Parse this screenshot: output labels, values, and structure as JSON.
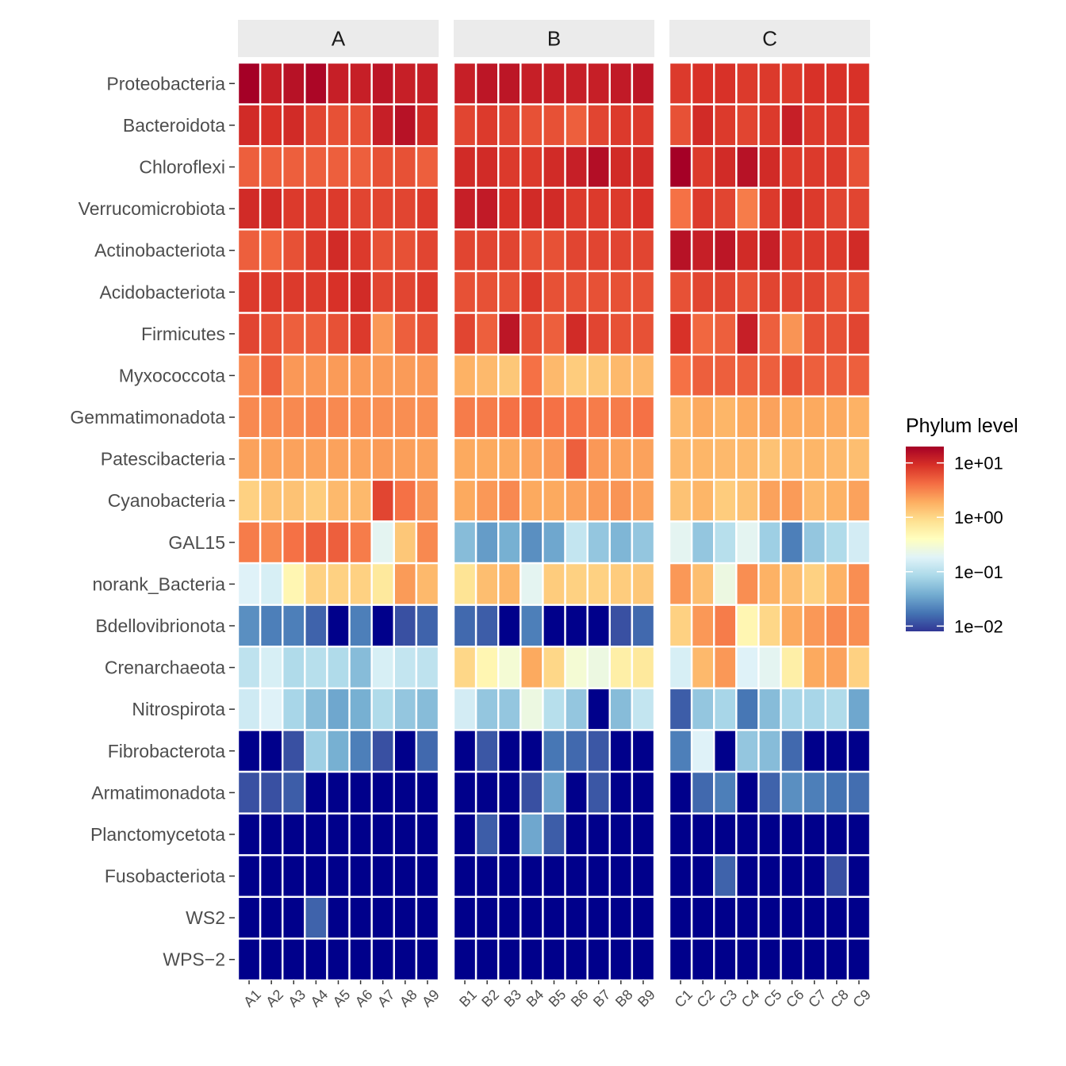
{
  "chart_data": {
    "type": "heatmap",
    "title": "",
    "xlabel": "",
    "ylabel": "",
    "scale": "log10",
    "palette": "RdYlBu (reversed)",
    "colors": [
      "#313695",
      "#4575b4",
      "#74add1",
      "#abd9e9",
      "#e0f3f8",
      "#ffffbf",
      "#fee090",
      "#fdae61",
      "#f46d43",
      "#d73027",
      "#a50026"
    ],
    "na_color": "#00008B",
    "legend": {
      "title": "Phylum level",
      "position": "right",
      "min": 0.008,
      "max": 20,
      "breaks": [
        10,
        1,
        0.1,
        0.01
      ],
      "break_labels": [
        "1e+01",
        "1e+00",
        "1e−01",
        "1e−02"
      ]
    },
    "rows": [
      "Proteobacteria",
      "Bacteroidota",
      "Chloroflexi",
      "Verrucomicrobiota",
      "Actinobacteriota",
      "Acidobacteriota",
      "Firmicutes",
      "Myxococcota",
      "Gemmatimonadota",
      "Patescibacteria",
      "Cyanobacteria",
      "GAL15",
      "norank_Bacteria",
      "Bdellovibrionota",
      "Crenarchaeota",
      "Nitrospirota",
      "Fibrobacterota",
      "Armatimonadota",
      "Planctomycetota",
      "Fusobacteriota",
      "WS2",
      "WPS−2"
    ],
    "facets": [
      {
        "name": "A",
        "samples": [
          "A1",
          "A2",
          "A3",
          "A4",
          "A5",
          "A6",
          "A7",
          "A8",
          "A9"
        ],
        "values": [
          [
            20,
            12,
            15,
            18,
            12,
            12,
            14,
            12,
            12
          ],
          [
            10,
            9,
            10,
            7,
            6,
            6,
            12,
            15,
            10
          ],
          [
            5,
            5,
            5,
            5,
            5,
            5,
            6,
            6,
            5
          ],
          [
            10,
            10,
            8,
            8,
            8,
            7,
            7,
            7,
            8
          ],
          [
            5,
            4.5,
            6,
            8,
            10,
            8,
            6,
            6,
            7
          ],
          [
            8,
            8,
            8,
            8,
            9,
            10,
            7,
            7,
            8
          ],
          [
            7,
            6,
            5,
            5,
            6,
            8,
            2.5,
            5,
            6
          ],
          [
            3,
            5,
            2.5,
            2.5,
            2.4,
            2.4,
            2.4,
            2.4,
            2.5
          ],
          [
            3,
            3,
            3,
            3.2,
            3,
            2.8,
            2.8,
            2.8,
            2.8
          ],
          [
            2.2,
            2.2,
            2.2,
            2.2,
            2.2,
            2.2,
            2.4,
            2.3,
            2.2
          ],
          [
            1.1,
            1.4,
            1.4,
            1.2,
            1.6,
            1.6,
            7,
            4,
            2.6
          ],
          [
            3.5,
            3,
            4,
            5,
            5,
            3.5,
            0.2,
            1.3,
            3
          ],
          [
            0.18,
            0.16,
            0.5,
            1.1,
            1.1,
            1.1,
            0.7,
            2.4,
            1.6
          ],
          [
            0.025,
            0.02,
            0.02,
            0.014,
            null,
            0.02,
            null,
            0.011,
            0.014
          ],
          [
            0.11,
            0.16,
            0.09,
            0.1,
            0.09,
            0.05,
            0.16,
            0.12,
            0.11
          ],
          [
            0.14,
            0.18,
            0.08,
            0.05,
            0.035,
            0.04,
            0.09,
            0.06,
            0.05
          ],
          [
            null,
            null,
            0.011,
            0.07,
            0.04,
            0.02,
            0.011,
            null,
            0.015
          ],
          [
            0.011,
            0.011,
            0.013,
            null,
            null,
            null,
            null,
            null,
            null
          ],
          [
            null,
            null,
            null,
            null,
            null,
            null,
            null,
            null,
            null
          ],
          [
            null,
            null,
            null,
            null,
            null,
            null,
            null,
            null,
            null
          ],
          [
            null,
            null,
            null,
            0.014,
            null,
            null,
            null,
            null,
            null
          ],
          [
            null,
            null,
            null,
            null,
            null,
            null,
            null,
            null,
            null
          ]
        ]
      },
      {
        "name": "B",
        "samples": [
          "B1",
          "B2",
          "B3",
          "B4",
          "B5",
          "B6",
          "B7",
          "B8",
          "B9"
        ],
        "values": [
          [
            12,
            14,
            14,
            12,
            12,
            12,
            12,
            13,
            14
          ],
          [
            7,
            8,
            7,
            6,
            6,
            5,
            7,
            8,
            8
          ],
          [
            10,
            10,
            8,
            8,
            10,
            12,
            16,
            10,
            10
          ],
          [
            12,
            13,
            9,
            10,
            10,
            8,
            8,
            8,
            9
          ],
          [
            7,
            7,
            7,
            6,
            6,
            7,
            7,
            7,
            7
          ],
          [
            6,
            6,
            6,
            8,
            6,
            6,
            6,
            6,
            6
          ],
          [
            7,
            5,
            14,
            6,
            5,
            10,
            7,
            6,
            6
          ],
          [
            1.8,
            1.6,
            1.3,
            4,
            1.6,
            1.2,
            1.3,
            1.6,
            1.6
          ],
          [
            3.5,
            3.5,
            4,
            4.5,
            4,
            4,
            3.5,
            3.5,
            4
          ],
          [
            2,
            2,
            2,
            2.2,
            2.5,
            5,
            2.5,
            2.2,
            2.2
          ],
          [
            2,
            2.5,
            3,
            2,
            2,
            2.2,
            2.4,
            2.6,
            2.2
          ],
          [
            0.05,
            0.03,
            0.04,
            0.025,
            0.035,
            0.12,
            0.06,
            0.045,
            0.06
          ],
          [
            0.8,
            1.5,
            1.7,
            0.2,
            1.2,
            1.1,
            1.1,
            1.2,
            1.3
          ],
          [
            0.015,
            0.013,
            null,
            0.02,
            null,
            null,
            null,
            0.011,
            0.015
          ],
          [
            1,
            0.5,
            0.3,
            2,
            1,
            0.3,
            0.25,
            0.6,
            0.7
          ],
          [
            0.15,
            0.06,
            0.06,
            0.25,
            0.1,
            0.06,
            null,
            0.05,
            0.12
          ],
          [
            null,
            0.012,
            null,
            null,
            0.018,
            0.015,
            0.012,
            null,
            null
          ],
          [
            null,
            null,
            null,
            0.011,
            0.035,
            null,
            0.012,
            null,
            null
          ],
          [
            null,
            0.013,
            null,
            0.035,
            0.013,
            null,
            null,
            null,
            null
          ],
          [
            null,
            null,
            null,
            null,
            null,
            null,
            null,
            null,
            null
          ],
          [
            null,
            null,
            null,
            null,
            null,
            null,
            null,
            null,
            null
          ],
          [
            null,
            null,
            null,
            null,
            null,
            null,
            null,
            null,
            null
          ]
        ]
      },
      {
        "name": "C",
        "samples": [
          "C1",
          "C2",
          "C3",
          "C4",
          "C5",
          "C6",
          "C7",
          "C8",
          "C9"
        ],
        "values": [
          [
            8,
            9,
            9,
            8,
            8,
            8,
            9,
            9,
            9
          ],
          [
            6,
            10,
            8,
            7,
            8,
            12,
            8,
            8,
            8
          ],
          [
            20,
            8,
            10,
            15,
            10,
            8,
            8,
            8,
            6
          ],
          [
            4,
            8,
            7,
            3.5,
            8,
            10,
            8,
            7,
            7
          ],
          [
            15,
            12,
            14,
            10,
            12,
            8,
            8,
            8,
            10
          ],
          [
            6,
            7,
            7,
            6,
            7,
            7,
            7,
            6,
            6
          ],
          [
            9,
            4.5,
            5,
            12,
            5,
            2.6,
            6,
            6,
            7
          ],
          [
            4,
            5,
            5,
            5,
            5,
            6,
            5,
            5,
            5
          ],
          [
            1.6,
            2,
            1.7,
            2,
            2.2,
            2,
            2,
            2,
            1.8
          ],
          [
            1.6,
            1.7,
            1.6,
            1.6,
            1.4,
            1.6,
            1.7,
            1.6,
            1.5
          ],
          [
            1.4,
            1.7,
            1.2,
            1.4,
            2.2,
            2.4,
            1.6,
            1.8,
            2.2
          ],
          [
            0.2,
            0.06,
            0.1,
            0.2,
            0.07,
            0.02,
            0.06,
            0.09,
            0.15
          ],
          [
            2.5,
            1.5,
            0.25,
            2.8,
            1.8,
            1.5,
            1.1,
            1.8,
            2.8
          ],
          [
            1.1,
            2.5,
            3.5,
            0.5,
            1,
            2,
            2.5,
            3,
            2.8
          ],
          [
            0.16,
            1.6,
            2.5,
            0.18,
            0.2,
            0.6,
            2,
            2.2,
            1.1
          ],
          [
            0.013,
            0.06,
            0.08,
            0.018,
            0.05,
            0.08,
            0.08,
            0.09,
            0.035
          ],
          [
            0.02,
            0.18,
            null,
            0.06,
            0.05,
            0.015,
            null,
            null,
            null
          ],
          [
            null,
            0.015,
            0.02,
            null,
            0.014,
            0.025,
            0.02,
            0.017,
            0.016
          ],
          [
            null,
            null,
            null,
            null,
            null,
            null,
            null,
            null,
            null
          ],
          [
            null,
            null,
            0.014,
            null,
            null,
            null,
            null,
            0.011,
            null
          ],
          [
            null,
            null,
            null,
            null,
            null,
            null,
            null,
            null,
            null
          ],
          [
            null,
            null,
            null,
            null,
            null,
            null,
            null,
            null,
            null
          ]
        ]
      }
    ]
  }
}
